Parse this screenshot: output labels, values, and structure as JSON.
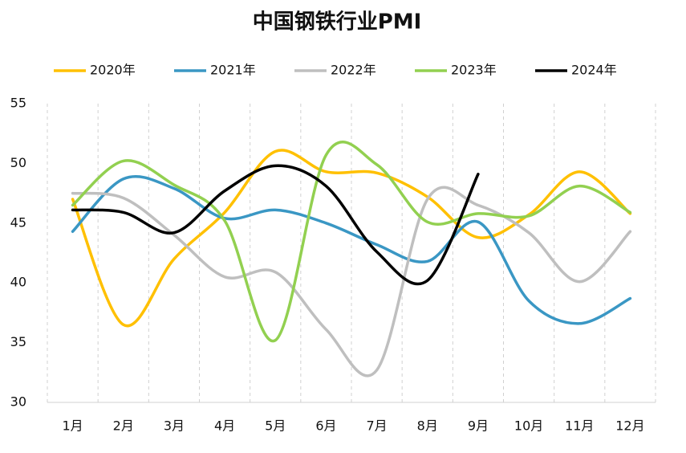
{
  "chart_data": {
    "type": "line",
    "title": "中国钢铁行业PMI",
    "categories": [
      "1月",
      "2月",
      "3月",
      "4月",
      "5月",
      "6月",
      "7月",
      "8月",
      "9月",
      "10月",
      "11月",
      "12月"
    ],
    "series": [
      {
        "name": "2020年",
        "color": "#FFC000",
        "values": [
          47.0,
          36.5,
          42.0,
          45.9,
          51.0,
          49.3,
          49.2,
          47.2,
          43.8,
          45.7,
          49.3,
          45.8
        ]
      },
      {
        "name": "2021年",
        "color": "#3A97C4",
        "values": [
          44.3,
          48.7,
          47.9,
          45.4,
          46.1,
          45.0,
          43.2,
          41.8,
          45.1,
          38.5,
          36.6,
          38.7
        ]
      },
      {
        "name": "2022年",
        "color": "#BFBFBF",
        "values": [
          47.5,
          47.1,
          44.0,
          40.5,
          40.9,
          36.1,
          32.7,
          47.0,
          46.5,
          44.2,
          40.1,
          44.3
        ]
      },
      {
        "name": "2023年",
        "color": "#92D050",
        "values": [
          46.5,
          50.2,
          48.2,
          45.2,
          35.2,
          50.7,
          49.9,
          45.1,
          45.8,
          45.6,
          48.1,
          45.9
        ]
      },
      {
        "name": "2024年",
        "color": "#000000",
        "values": [
          46.1,
          45.9,
          44.2,
          47.7,
          49.8,
          48.1,
          42.6,
          40.2,
          49.1,
          null,
          null,
          null
        ]
      }
    ],
    "ylim": [
      30,
      55
    ],
    "yticks": [
      30,
      35,
      40,
      45,
      50,
      55
    ],
    "legend": "top"
  }
}
